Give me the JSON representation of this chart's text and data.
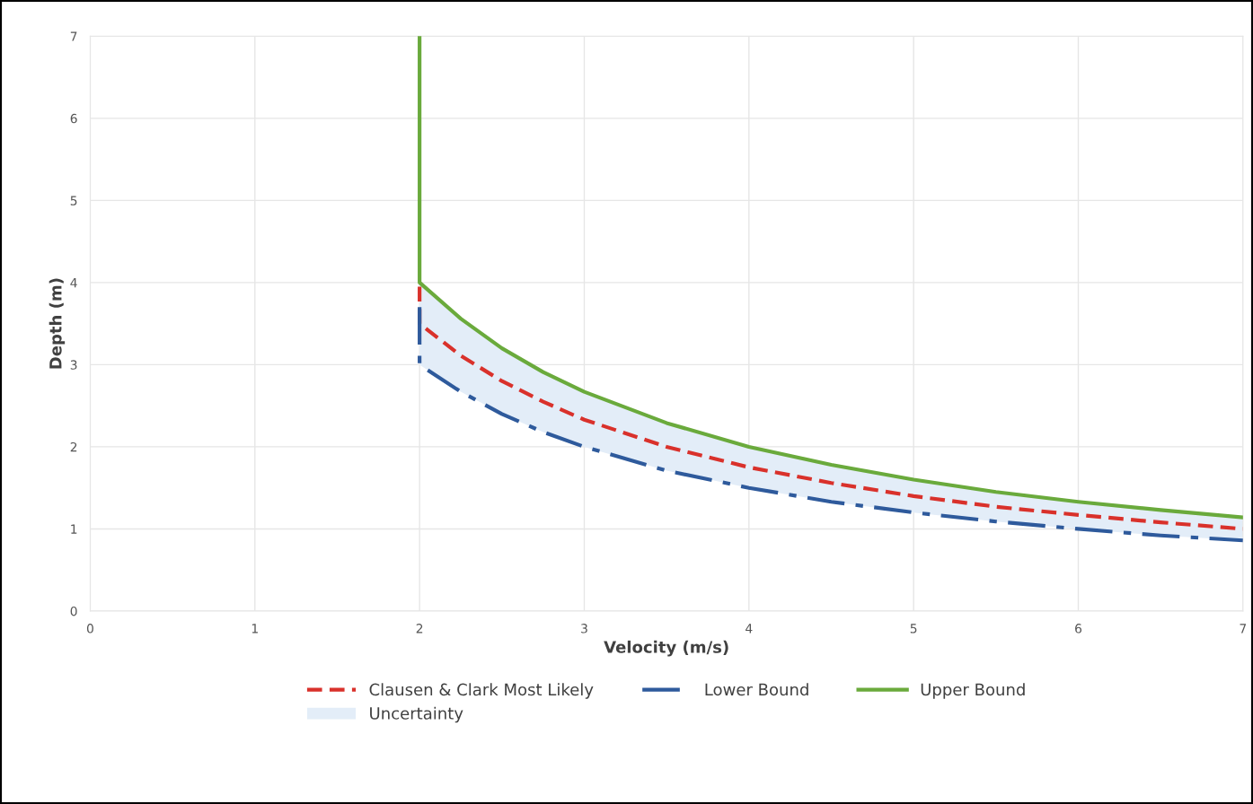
{
  "chart_data": {
    "type": "line",
    "xlabel": "Velocity (m/s)",
    "ylabel": "Depth (m)",
    "xlim": [
      0,
      7
    ],
    "ylim": [
      0,
      7
    ],
    "xticks": [
      0,
      1,
      2,
      3,
      4,
      5,
      6,
      7
    ],
    "yticks": [
      0,
      1,
      2,
      3,
      4,
      5,
      6,
      7
    ],
    "grid": true,
    "legend": "bottom",
    "series": [
      {
        "name": "Clausen & Clark Most Likely",
        "color": "#d9312b",
        "line_style": "dashed",
        "x": [
          2,
          2,
          2.25,
          2.5,
          2.75,
          3,
          3.5,
          4,
          4.5,
          5,
          5.5,
          6,
          6.5,
          7
        ],
        "values": [
          3.95,
          3.5,
          3.11,
          2.8,
          2.55,
          2.33,
          2.0,
          1.75,
          1.56,
          1.4,
          1.27,
          1.17,
          1.08,
          1.0
        ]
      },
      {
        "name": "Lower Bound",
        "color": "#2e5a9c",
        "line_style": "dashdot",
        "x": [
          2,
          2,
          2.25,
          2.5,
          2.75,
          3,
          3.5,
          4,
          4.5,
          5,
          5.5,
          6,
          6.5,
          7
        ],
        "values": [
          3.7,
          3.0,
          2.67,
          2.4,
          2.18,
          2.0,
          1.71,
          1.5,
          1.33,
          1.2,
          1.09,
          1.0,
          0.92,
          0.86
        ]
      },
      {
        "name": "Upper Bound",
        "color": "#6aaa3c",
        "line_style": "solid",
        "x": [
          2,
          2,
          2.25,
          2.5,
          2.75,
          3,
          3.5,
          4,
          4.5,
          5,
          5.5,
          6,
          6.5,
          7
        ],
        "values": [
          7.0,
          4.0,
          3.56,
          3.2,
          2.91,
          2.67,
          2.29,
          2.0,
          1.78,
          1.6,
          1.45,
          1.33,
          1.23,
          1.14
        ]
      },
      {
        "name": "Uncertainty",
        "type": "area",
        "color": "#e3edf8",
        "x": [
          2,
          2.25,
          2.5,
          2.75,
          3,
          3.5,
          4,
          4.5,
          5,
          5.5,
          6,
          6.5,
          7
        ],
        "values": [
          null,
          null,
          null,
          null,
          null,
          null,
          null,
          null,
          null,
          null,
          null,
          null,
          null
        ],
        "lower": [
          3.0,
          2.67,
          2.4,
          2.18,
          2.0,
          1.71,
          1.5,
          1.33,
          1.2,
          1.09,
          1.0,
          0.92,
          0.86
        ],
        "upper": [
          4.0,
          3.56,
          3.2,
          2.91,
          2.67,
          2.29,
          2.0,
          1.78,
          1.6,
          1.45,
          1.33,
          1.23,
          1.14
        ]
      }
    ]
  }
}
